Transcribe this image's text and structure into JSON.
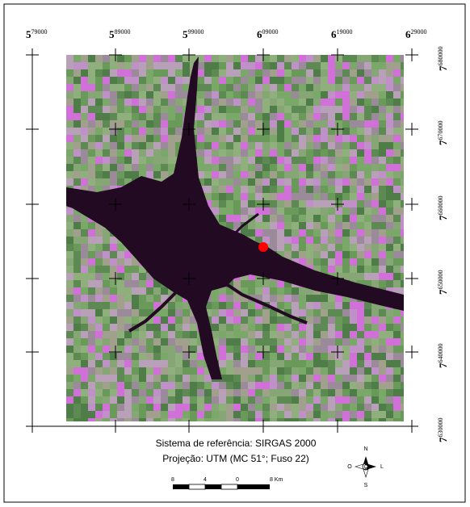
{
  "map": {
    "x_labels": [
      {
        "major": "5",
        "minor": "79000"
      },
      {
        "major": "5",
        "minor": "89000"
      },
      {
        "major": "5",
        "minor": "99000"
      },
      {
        "major": "6",
        "minor": "09000"
      },
      {
        "major": "6",
        "minor": "19000"
      },
      {
        "major": "6",
        "minor": "29000"
      }
    ],
    "y_labels": [
      {
        "major": "7",
        "minor": "680000"
      },
      {
        "major": "7",
        "minor": "670000"
      },
      {
        "major": "7",
        "minor": "660000"
      },
      {
        "major": "7",
        "minor": "650000"
      },
      {
        "major": "7",
        "minor": "640000"
      },
      {
        "major": "7",
        "minor": "630000"
      }
    ],
    "reference_system": "Sistema de referência: SIRGAS 2000",
    "projection": "Projeção: UTM (MC 51°; Fuso 22)",
    "scale_labels": [
      "8",
      "4",
      "0",
      "8 Km"
    ],
    "compass": {
      "north": "N",
      "south": "S",
      "west": "O",
      "east": "L"
    }
  }
}
